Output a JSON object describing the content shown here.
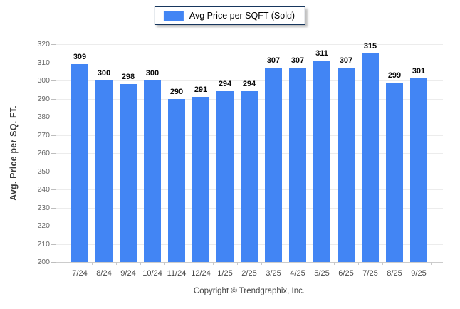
{
  "colors": {
    "bar": "#4285f4",
    "legend_border": "#17365d",
    "background": "#ffffff",
    "gridline": "#ececec",
    "value_label": "#0a0a0a"
  },
  "chart_data": {
    "type": "bar",
    "title": "",
    "legend": {
      "label": "Avg Price per SQFT (Sold)",
      "position": "top",
      "swatch_color": "#4285f4"
    },
    "categories": [
      "7/24",
      "8/24",
      "9/24",
      "10/24",
      "11/24",
      "12/24",
      "1/25",
      "2/25",
      "3/25",
      "4/25",
      "5/25",
      "6/25",
      "7/25",
      "8/25",
      "9/25"
    ],
    "values": [
      309,
      300,
      298,
      300,
      290,
      291,
      294,
      294,
      307,
      307,
      311,
      307,
      315,
      299,
      301
    ],
    "xlabel": "",
    "ylabel": "Avg. Price per SQ. FT.",
    "ylim": [
      200,
      320
    ],
    "ytick_step": 10,
    "grid": "horizontal",
    "data_labels": true,
    "footer": "Copyright © Trendgraphix, Inc."
  }
}
